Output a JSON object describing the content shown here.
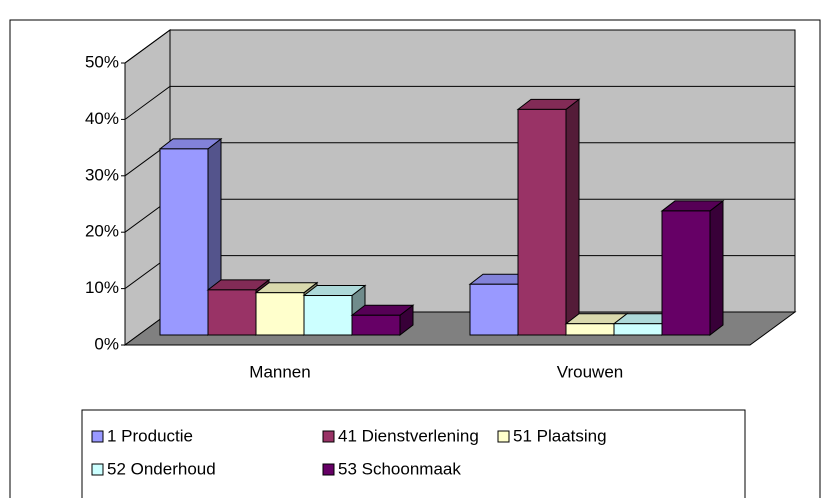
{
  "chart_data": {
    "type": "bar3d",
    "categories": [
      "Mannen",
      "Vrouwen"
    ],
    "series": [
      {
        "name": "1 Productie",
        "color": "#9999ff",
        "values": [
          33,
          9
        ]
      },
      {
        "name": "41 Dienstverlening",
        "color": "#993366",
        "values": [
          8,
          40
        ]
      },
      {
        "name": "51 Plaatsing",
        "color": "#ffffcc",
        "values": [
          7.5,
          2
        ]
      },
      {
        "name": "52 Onderhoud",
        "color": "#ccffff",
        "values": [
          7,
          2
        ]
      },
      {
        "name": "53 Schoonmaak",
        "color": "#660066",
        "values": [
          3.5,
          22
        ]
      }
    ],
    "ylim": [
      0,
      50
    ],
    "yticks": [
      {
        "value": 0,
        "label": "0%"
      },
      {
        "value": 10,
        "label": "10%"
      },
      {
        "value": 20,
        "label": "20%"
      },
      {
        "value": 30,
        "label": "30%"
      },
      {
        "value": 40,
        "label": "40%"
      },
      {
        "value": 50,
        "label": "50%"
      }
    ],
    "grid": true
  }
}
